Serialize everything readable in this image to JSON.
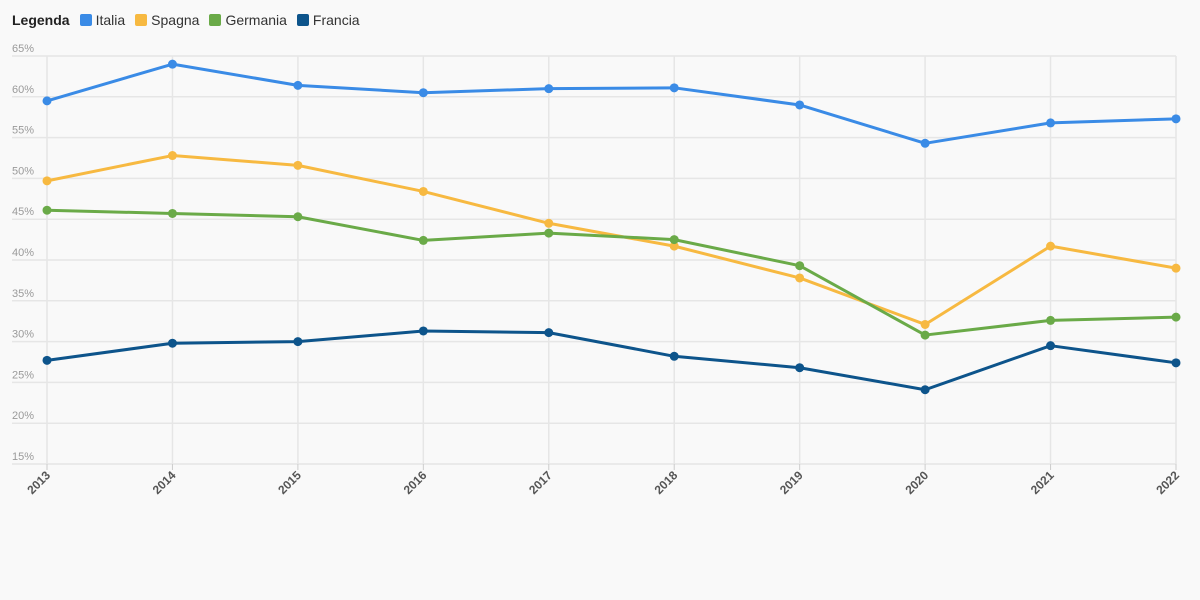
{
  "chart_data": {
    "type": "line",
    "legend_title": "Legenda",
    "legend_position": "top-left",
    "grid": true,
    "x": [
      "2013",
      "2014",
      "2015",
      "2016",
      "2017",
      "2018",
      "2019",
      "2020",
      "2021",
      "2022"
    ],
    "ylim": [
      15,
      65
    ],
    "yticks": [
      "15%",
      "20%",
      "25%",
      "30%",
      "35%",
      "40%",
      "45%",
      "50%",
      "55%",
      "60%",
      "65%"
    ],
    "series": [
      {
        "name": "Italia",
        "color": "#3a8be6",
        "values": [
          59.5,
          64.0,
          61.4,
          60.5,
          61.0,
          61.1,
          59.0,
          54.3,
          56.8,
          57.3
        ]
      },
      {
        "name": "Spagna",
        "color": "#f7b941",
        "values": [
          49.7,
          52.8,
          51.6,
          48.4,
          44.5,
          41.7,
          37.8,
          32.1,
          41.7,
          39.0
        ]
      },
      {
        "name": "Germania",
        "color": "#6aaa48",
        "values": [
          46.1,
          45.7,
          45.3,
          42.4,
          43.3,
          42.5,
          39.3,
          30.8,
          32.6,
          33.0
        ]
      },
      {
        "name": "Francia",
        "color": "#0d548b",
        "values": [
          27.7,
          29.8,
          30.0,
          31.3,
          31.1,
          28.2,
          26.8,
          24.1,
          29.5,
          27.4
        ]
      }
    ]
  }
}
